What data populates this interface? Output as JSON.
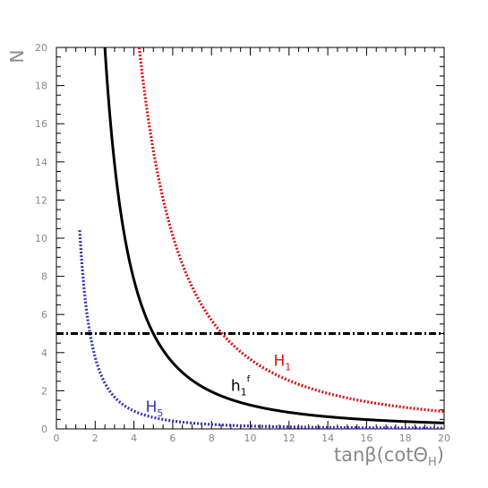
{
  "chart_data": {
    "type": "line",
    "title": "",
    "xlabel": "tanβ(cotΘ_H)",
    "xlabel_parts": {
      "main": "tanβ(cotΘ",
      "sub": "H",
      "close": ")"
    },
    "ylabel": "N",
    "xlim": [
      0,
      20
    ],
    "ylim": [
      0,
      20
    ],
    "xticks": [
      0,
      2,
      4,
      6,
      8,
      10,
      12,
      14,
      16,
      18,
      20
    ],
    "yticks": [
      0,
      2,
      4,
      6,
      8,
      10,
      12,
      14,
      16,
      18,
      20
    ],
    "grid": false,
    "series": [
      {
        "name": "H_5",
        "label_main": "H",
        "label_sub": "5",
        "label_at": [
          4.6,
          0.9
        ],
        "color": "#3333bb",
        "style": "dotted",
        "k": 15,
        "x_start": 1.2
      },
      {
        "name": "h_1^f",
        "label_main": "h",
        "label_sub": "1",
        "label_sup": "f",
        "label_at": [
          9.0,
          2.0
        ],
        "color": "#000000",
        "style": "solid",
        "k": 125,
        "x_start": 2.5
      },
      {
        "name": "H_1",
        "label_main": "H",
        "label_sub": "1",
        "label_at": [
          11.2,
          3.3
        ],
        "color": "#dd1111",
        "style": "dotted",
        "k": 365,
        "x_start": 4.27
      },
      {
        "name": "N=5",
        "color": "#000000",
        "style": "dashdot",
        "constant": 5
      }
    ]
  }
}
